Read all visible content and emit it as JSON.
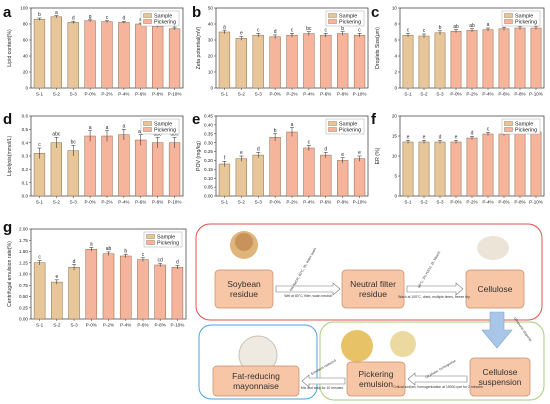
{
  "colors": {
    "sample": "#e7c79a",
    "pickering": "#f6b49c",
    "bar_stroke": "#8a6a4a",
    "box_fill": "#f6c6a6",
    "box_stroke": "#c98a66",
    "red_frame": "#e25050",
    "blue_frame": "#4aa6de",
    "green_frame": "#a6cf7a",
    "arrow": "#a9c6e8"
  },
  "legend": {
    "sample": "Sample",
    "pickering": "Pickering"
  },
  "chart_data": [
    {
      "type": "bar",
      "panel": "a",
      "ylabel": "Lipid content(%)",
      "categories": [
        "S-1",
        "S-2",
        "S-3",
        "P-0%",
        "P-2%",
        "P-4%",
        "P-6%",
        "P-8%",
        "P-10%"
      ],
      "values": [
        86,
        89,
        82,
        84,
        83,
        82,
        80,
        77,
        74
      ],
      "errors": [
        1.5,
        1.5,
        1.5,
        1.2,
        1.2,
        1.2,
        1.2,
        1.2,
        1.2
      ],
      "letters": [
        "b",
        "a",
        "d",
        "g",
        "c",
        "d",
        "e",
        "f",
        "g"
      ],
      "ylim": [
        0,
        100
      ],
      "yticks": [
        0,
        20,
        40,
        60,
        80,
        100
      ]
    },
    {
      "type": "bar",
      "panel": "b",
      "ylabel": "Zeta potential(mV)",
      "categories": [
        "S-1",
        "S-2",
        "S-3",
        "P-0%",
        "P-2%",
        "P-4%",
        "P-6%",
        "P-8%",
        "P-10%"
      ],
      "values": [
        35,
        31,
        33,
        32,
        33,
        34,
        33,
        34,
        33
      ],
      "errors": [
        1.2,
        1.2,
        1.2,
        1.2,
        1.2,
        1.2,
        1.2,
        1.2,
        1.2
      ],
      "letters": [
        "a",
        "e",
        "c",
        "d",
        "c",
        "bc",
        "c",
        "b",
        "c"
      ],
      "ylim": [
        0,
        50
      ],
      "yticks": [
        0,
        10,
        20,
        30,
        40,
        50
      ]
    },
    {
      "type": "bar",
      "panel": "c",
      "ylabel": "Droplets Size(μm)",
      "categories": [
        "S-1",
        "S-2",
        "S-3",
        "P-0%",
        "P-2%",
        "P-4%",
        "P-6%",
        "P-8%",
        "P-10%"
      ],
      "values": [
        6.6,
        6.5,
        6.9,
        7.1,
        7.2,
        7.3,
        7.4,
        7.5,
        7.5
      ],
      "errors": [
        0.25,
        0.25,
        0.25,
        0.2,
        0.2,
        0.2,
        0.2,
        0.2,
        0.2
      ],
      "letters": [
        "c",
        "c",
        "b",
        "ab",
        "ab",
        "a",
        "a",
        "a",
        "a"
      ],
      "ylim": [
        0,
        10
      ],
      "yticks": [
        0,
        2,
        4,
        6,
        8,
        10
      ]
    },
    {
      "type": "bar",
      "panel": "d",
      "ylabel": "Lipolysis(mmol/L)",
      "categories": [
        "S-1",
        "S-2",
        "S-3",
        "P-0%",
        "P-2%",
        "P-4%",
        "P-6%",
        "P-8%",
        "P-10%"
      ],
      "values": [
        0.32,
        0.4,
        0.34,
        0.45,
        0.45,
        0.46,
        0.42,
        0.4,
        0.4
      ],
      "errors": [
        0.04,
        0.04,
        0.04,
        0.04,
        0.04,
        0.04,
        0.04,
        0.04,
        0.04
      ],
      "letters": [
        "c",
        "abc",
        "bc",
        "a",
        "a",
        "a",
        "ab",
        "abc",
        "abc"
      ],
      "ylim": [
        0,
        0.6
      ],
      "yticks": [
        0,
        0.1,
        0.2,
        0.3,
        0.4,
        0.5,
        0.6
      ]
    },
    {
      "type": "bar",
      "panel": "e",
      "ylabel": "POV (mg/kg)",
      "categories": [
        "S-1",
        "S-2",
        "S-3",
        "P-0%",
        "P-2%",
        "P-4%",
        "P-6%",
        "P-8%",
        "P-10%"
      ],
      "values": [
        0.18,
        0.21,
        0.23,
        0.33,
        0.36,
        0.27,
        0.23,
        0.2,
        0.21
      ],
      "errors": [
        0.015,
        0.015,
        0.015,
        0.02,
        0.025,
        0.015,
        0.015,
        0.015,
        0.015
      ],
      "letters": [
        "f",
        "e",
        "d",
        "b",
        "a",
        "c",
        "d",
        "e",
        "e"
      ],
      "ylim": [
        0,
        0.45
      ],
      "yticks": [
        0,
        0.05,
        0.1,
        0.15,
        0.2,
        0.25,
        0.3,
        0.35,
        0.4,
        0.45
      ]
    },
    {
      "type": "bar",
      "panel": "f",
      "ylabel": "ER (%)",
      "categories": [
        "S-1",
        "S-2",
        "S-3",
        "P-0%",
        "P-2%",
        "P-4%",
        "P-6%",
        "P-8%",
        "P-10%"
      ],
      "values": [
        13.5,
        13.5,
        13.5,
        13.5,
        14.5,
        15.5,
        15.5,
        17,
        16
      ],
      "errors": [
        0.4,
        0.4,
        0.4,
        0.4,
        0.4,
        0.4,
        0.4,
        0.4,
        0.4
      ],
      "letters": [
        "e",
        "e",
        "d",
        "e",
        "d",
        "c",
        "b",
        "a",
        "a"
      ],
      "ylim": [
        0,
        20
      ],
      "yticks": [
        0,
        5,
        10,
        15,
        20
      ]
    },
    {
      "type": "bar",
      "panel": "g",
      "ylabel": "Centrifugal emulsion rate(%)",
      "categories": [
        "S-1",
        "S-2",
        "S-3",
        "P-0%",
        "P-2%",
        "P-4%",
        "P-6%",
        "P-8%",
        "P-10%"
      ],
      "values": [
        1.25,
        0.82,
        1.15,
        1.55,
        1.45,
        1.4,
        1.32,
        1.2,
        1.15
      ],
      "errors": [
        0.05,
        0.05,
        0.06,
        0.04,
        0.04,
        0.04,
        0.04,
        0.04,
        0.04
      ],
      "letters": [
        "c",
        "e",
        "d",
        "a",
        "ab",
        "b",
        "c",
        "cd",
        "d"
      ],
      "ylim": [
        0,
        2.0
      ],
      "yticks": [
        0,
        0.25,
        0.5,
        0.75,
        1.0,
        1.25,
        1.5,
        1.75,
        2.0
      ]
    }
  ],
  "diagram": {
    "boxes": {
      "soybean": "Soybean residue",
      "neutral": "Neutral filter residue",
      "cellulose": "Cellulose",
      "suspension": "Cellulose suspension",
      "pickering": "Pickering emulsion",
      "mayonnaise": "Fat-reducing mayonnaise"
    },
    "arrows": {
      "a1": "5% NaOH, 60°C, 2h, water wash",
      "a1b": "Wet at 80°C, filter, wash neutral",
      "a2": "90°C, 3% H2O2, 2h, bleach",
      "a2b": "Wash at 100°C, dried, multiple times, freeze dry",
      "a3": "Ultrasonic disperse",
      "a4": "Oil phase, homogenize",
      "a4b": "Critical sodium, homogenization at 15000 rpm for 2 minutes",
      "a5": "Emulsion replaced",
      "a5b": "Mix and whip for 10 minutes"
    }
  }
}
